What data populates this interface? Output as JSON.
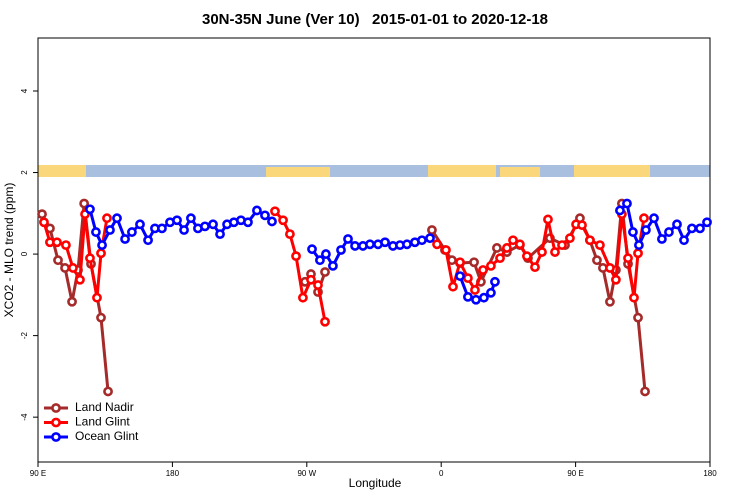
{
  "chart_data": {
    "type": "line",
    "title": "30N-35N June (Ver 10)   2015-01-01 to 2020-12-18",
    "xlabel": "Longitude",
    "ylabel": "XCO2 - MLO trend (ppm)",
    "xlim": [
      90,
      540
    ],
    "ylim": [
      -5.1,
      5.3
    ],
    "xticks": [
      {
        "value": 90,
        "label": "90 E"
      },
      180,
      {
        "value": 270,
        "label": "90 W"
      },
      {
        "value": 360,
        "label": "0"
      },
      {
        "value": 450,
        "label": "90 E"
      },
      {
        "value": 540,
        "label": "180"
      }
    ],
    "yticks": [
      -4,
      -2,
      0,
      2,
      4
    ],
    "legend": "lower left",
    "series": [
      {
        "name": "Land Nadir",
        "color": "#a52a2a",
        "x": [
          92.7,
          98.0,
          103.4,
          108.1,
          112.8,
          116.8,
          120.9,
          125.5,
          132.2,
          136.9,
          null,
          268.8,
          272.8,
          277.5,
          282.2,
          null,
          353.8,
          362.5,
          367.2,
          372.6,
          382.0,
          386.6,
          397.3,
          404.0,
          412.7,
          418.1,
          432.8,
          442.9,
          452.9,
          459.6,
          464.3,
          468.3,
          473.0,
          477.0,
          481.0,
          485.1,
          491.8,
          496.5
        ],
        "values": [
          0.98,
          0.63,
          -0.15,
          -0.34,
          -1.17,
          -0.39,
          1.24,
          -0.24,
          -1.56,
          -3.37,
          null,
          -0.68,
          -0.49,
          -0.93,
          -0.44,
          null,
          0.59,
          0.1,
          -0.15,
          -0.22,
          -0.2,
          -0.68,
          0.15,
          0.05,
          0.22,
          -0.1,
          0.39,
          0.22,
          0.88,
          0.34,
          -0.15,
          -0.34,
          -1.17,
          -0.39,
          1.24,
          -0.24,
          -1.56,
          -3.37
        ]
      },
      {
        "name": "Land Glint",
        "color": "#ff0000",
        "x": [
          94.0,
          98.0,
          102.7,
          108.7,
          113.4,
          118.1,
          121.5,
          124.8,
          129.5,
          132.2,
          136.2,
          null,
          248.7,
          254.1,
          258.7,
          262.8,
          267.4,
          272.8,
          277.5,
          282.2,
          null,
          357.2,
          363.2,
          367.9,
          372.6,
          377.9,
          382.6,
          388.0,
          393.3,
          399.4,
          404.0,
          408.1,
          412.7,
          417.4,
          422.8,
          427.5,
          431.5,
          436.2,
          440.9,
          446.2,
          450.3,
          454.3,
          459.6,
          466.3,
          473.0,
          477.0,
          481.0,
          485.1,
          489.1,
          491.8,
          495.8
        ],
        "values": [
          0.78,
          0.29,
          0.29,
          0.22,
          -0.34,
          -0.63,
          0.98,
          -0.1,
          -1.07,
          0.02,
          0.88,
          null,
          1.05,
          0.83,
          0.49,
          -0.05,
          -1.07,
          -0.63,
          -0.76,
          -1.66,
          null,
          0.24,
          0.1,
          -0.8,
          -0.2,
          -0.59,
          -0.88,
          -0.39,
          -0.29,
          -0.1,
          0.15,
          0.34,
          0.24,
          -0.05,
          -0.32,
          0.05,
          0.85,
          0.05,
          0.22,
          0.39,
          0.73,
          0.71,
          0.34,
          0.22,
          -0.34,
          -0.63,
          0.98,
          -0.1,
          -1.07,
          0.02,
          0.88
        ]
      },
      {
        "name": "Ocean Glint",
        "color": "#0000ff",
        "x": [
          124.8,
          128.8,
          132.9,
          138.2,
          142.9,
          148.3,
          152.9,
          158.3,
          163.7,
          168.3,
          173.0,
          178.4,
          183.1,
          187.8,
          192.4,
          197.1,
          201.8,
          207.2,
          211.9,
          216.6,
          221.2,
          225.9,
          230.6,
          236.6,
          242.0,
          246.7,
          null,
          273.5,
          278.8,
          282.8,
          287.5,
          292.9,
          297.6,
          302.3,
          307.6,
          312.3,
          317.7,
          322.4,
          327.7,
          332.4,
          337.1,
          342.4,
          347.1,
          352.5,
          null,
          372.6,
          377.9,
          383.3,
          388.6,
          393.3,
          396.0,
          null,
          479.7,
          484.4,
          488.4,
          492.4,
          497.1,
          502.5,
          507.8,
          512.5,
          517.9,
          522.6,
          527.9,
          533.3,
          538.0
        ],
        "values": [
          1.1,
          0.54,
          0.22,
          0.59,
          0.88,
          0.37,
          0.54,
          0.73,
          0.34,
          0.63,
          0.63,
          0.78,
          0.83,
          0.59,
          0.88,
          0.63,
          0.68,
          0.73,
          0.49,
          0.73,
          0.78,
          0.83,
          0.78,
          1.07,
          0.95,
          0.8,
          null,
          0.12,
          -0.15,
          0.0,
          -0.29,
          0.1,
          0.37,
          0.2,
          0.2,
          0.24,
          0.24,
          0.29,
          0.2,
          0.22,
          0.24,
          0.29,
          0.34,
          0.39,
          null,
          -0.54,
          -1.05,
          -1.12,
          -1.07,
          -0.95,
          -0.68,
          null,
          1.07,
          1.24,
          0.54,
          0.22,
          0.59,
          0.88,
          0.37,
          0.54,
          0.73,
          0.34,
          0.63,
          0.63,
          0.78
        ]
      }
    ]
  }
}
